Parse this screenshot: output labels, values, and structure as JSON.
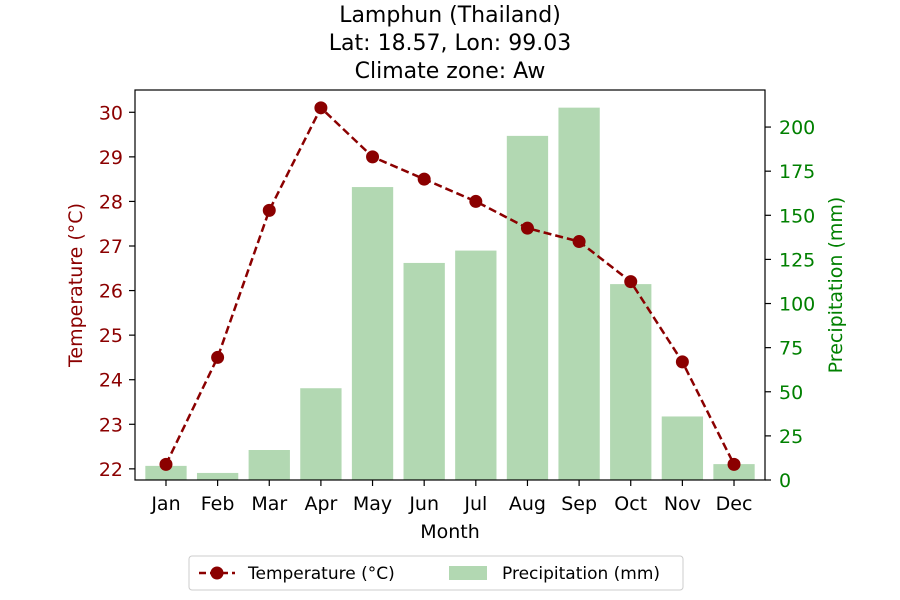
{
  "chart_data": {
    "type": "bar+line",
    "title_lines": [
      "Lamphun (Thailand)",
      "Lat: 18.57, Lon: 99.03",
      "Climate zone: Aw"
    ],
    "xlabel": "Month",
    "ylabel_left": "Temperature (°C)",
    "ylabel_right": "Precipitation (mm)",
    "categories": [
      "Jan",
      "Feb",
      "Mar",
      "Apr",
      "May",
      "Jun",
      "Jul",
      "Aug",
      "Sep",
      "Oct",
      "Nov",
      "Dec"
    ],
    "series": [
      {
        "name": "Temperature (°C)",
        "kind": "line",
        "axis": "left",
        "style": "dashed with circle markers",
        "color": "#8b0000",
        "values": [
          22.1,
          24.5,
          27.8,
          30.1,
          29.0,
          28.5,
          28.0,
          27.4,
          27.1,
          26.2,
          24.4,
          22.1
        ]
      },
      {
        "name": "Precipitation (mm)",
        "kind": "bar",
        "axis": "right",
        "color": "#b2d8b2",
        "values": [
          8,
          4,
          17,
          52,
          166,
          123,
          130,
          195,
          211,
          111,
          36,
          9
        ]
      }
    ],
    "ylim_left": [
      21.75,
      30.5
    ],
    "ylim_right": [
      0,
      221
    ],
    "yticks_left": [
      22,
      23,
      24,
      25,
      26,
      27,
      28,
      29,
      30
    ],
    "yticks_right": [
      0,
      25,
      50,
      75,
      100,
      125,
      150,
      175,
      200
    ],
    "left_axis_color": "#8b0000",
    "right_axis_color": "#008000",
    "grid": false,
    "legend": {
      "placement": "bottom-center, below plot",
      "entries": [
        "Temperature (°C)",
        "Precipitation (mm)"
      ]
    }
  }
}
